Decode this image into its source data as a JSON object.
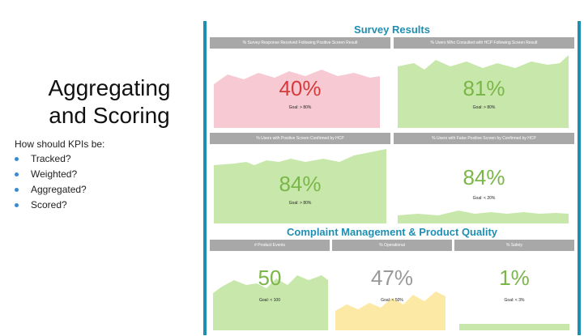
{
  "slide": {
    "title_line1": "Aggregating",
    "title_line2": "and Scoring",
    "question": "How should KPIs be:",
    "bullets": [
      "Tracked?",
      "Weighted?",
      "Aggregated?",
      "Scored?"
    ],
    "bullet_color": "#3b8ad0"
  },
  "dashboard": {
    "frame_color": "#1f8fb1",
    "survey_title": "Survey Results",
    "complaint_title": "Complaint Management & Product Quality",
    "survey_panels": [
      {
        "header": "% Survey Response Received Following Positive Screen Result",
        "value": "40%",
        "goal": "Goal: > 80%",
        "status": "red",
        "fill": "#f6c9d3",
        "text_color": "#d63b3b",
        "level": 0.72,
        "shape": "a"
      },
      {
        "header": "% Users Who Consulted with HCP Following Screen Result",
        "value": "81%",
        "goal": "Goal: > 80%",
        "status": "green",
        "fill": "#c8e8ab",
        "text_color": "#7ab648",
        "level": 0.82,
        "shape": "b"
      },
      {
        "header": "% Users with Positive Screen Confirmed by HCP",
        "value": "84%",
        "goal": "Goal: > 80%",
        "status": "green",
        "fill": "#c8e8ab",
        "text_color": "#7ab648",
        "level": 0.85,
        "shape": "c"
      },
      {
        "header": "% Users with False Positive Screen by Confirmed by HCP",
        "value": "84%",
        "goal": "Goal: < 20%",
        "status": "green",
        "fill": "#c8e8ab",
        "text_color": "#7ab648",
        "level": 0.12,
        "shape": "d"
      }
    ],
    "complaint_panels": [
      {
        "header": "# Product Events",
        "value": "50",
        "goal": "Goal: < 100",
        "status": "green",
        "fill": "#c8e8ab",
        "text_color": "#7ab648",
        "shape": "e"
      },
      {
        "header": "% Operational",
        "value": "47%",
        "goal": "Goal: < 50%",
        "status": "neutral",
        "fill": "#fde9a6",
        "text_color": "#999999",
        "shape": "f"
      },
      {
        "header": "% Safety",
        "value": "1%",
        "goal": "Goal: < 3%",
        "status": "green",
        "fill": "#c8e8ab",
        "text_color": "#7ab648",
        "shape": "g"
      }
    ]
  }
}
